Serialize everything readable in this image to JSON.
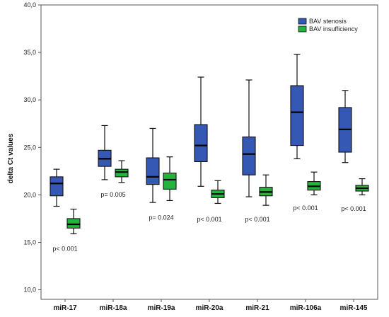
{
  "chart_data": {
    "type": "boxplot",
    "ylabel": "delta Ct values",
    "xlabel": "",
    "ylim": [
      9.0,
      40.0
    ],
    "yticks": [
      "10,0",
      "15,0",
      "20,0",
      "25,0",
      "30,0",
      "35,0",
      "40,0"
    ],
    "ytick_values": [
      10,
      15,
      20,
      25,
      30,
      35,
      40
    ],
    "grid": false,
    "legend_position": "top-right",
    "categories": [
      "miR-17",
      "miR-18a",
      "miR-19a",
      "miR-20a",
      "miR-21",
      "miR-106a",
      "miR-145"
    ],
    "series": [
      {
        "name": "BAV stenosis",
        "color": "#3558b5",
        "boxes": [
          {
            "min": 18.8,
            "q1": 19.9,
            "median": 21.2,
            "q3": 21.9,
            "max": 22.7
          },
          {
            "min": 21.6,
            "q1": 23.0,
            "median": 23.8,
            "q3": 24.7,
            "max": 27.3
          },
          {
            "min": 19.2,
            "q1": 21.1,
            "median": 21.9,
            "q3": 23.9,
            "max": 27.0
          },
          {
            "min": 20.9,
            "q1": 23.5,
            "median": 25.2,
            "q3": 27.4,
            "max": 32.4
          },
          {
            "min": 19.8,
            "q1": 22.1,
            "median": 24.3,
            "q3": 26.1,
            "max": 32.1
          },
          {
            "min": 23.8,
            "q1": 25.2,
            "median": 28.7,
            "q3": 31.5,
            "max": 34.8
          },
          {
            "min": 23.4,
            "q1": 24.5,
            "median": 26.9,
            "q3": 29.2,
            "max": 31.0
          }
        ]
      },
      {
        "name": "BAV insufficiency",
        "color": "#22b43c",
        "boxes": [
          {
            "min": 15.9,
            "q1": 16.5,
            "median": 16.9,
            "q3": 17.5,
            "max": 18.5
          },
          {
            "min": 21.3,
            "q1": 21.9,
            "median": 22.4,
            "q3": 22.7,
            "max": 23.6
          },
          {
            "min": 19.4,
            "q1": 20.6,
            "median": 21.6,
            "q3": 22.3,
            "max": 24.0
          },
          {
            "min": 19.1,
            "q1": 19.7,
            "median": 20.1,
            "q3": 20.5,
            "max": 21.5
          },
          {
            "min": 18.9,
            "q1": 19.9,
            "median": 20.3,
            "q3": 20.8,
            "max": 22.1
          },
          {
            "min": 20.0,
            "q1": 20.5,
            "median": 20.9,
            "q3": 21.4,
            "max": 22.4
          },
          {
            "min": 20.0,
            "q1": 20.4,
            "median": 20.7,
            "q3": 21.0,
            "max": 21.7
          }
        ]
      }
    ],
    "annotations": [
      {
        "category": "miR-17",
        "text": "p< 0.001",
        "y": 14.1
      },
      {
        "category": "miR-18a",
        "text": "p= 0.005",
        "y": 19.8
      },
      {
        "category": "miR-19a",
        "text": "p= 0.024",
        "y": 17.4
      },
      {
        "category": "miR-20a",
        "text": "p< 0.001",
        "y": 17.2
      },
      {
        "category": "miR-21",
        "text": "p< 0.001",
        "y": 17.2
      },
      {
        "category": "miR-106a",
        "text": "p< 0.001",
        "y": 18.4
      },
      {
        "category": "miR-145",
        "text": "p< 0.001",
        "y": 18.3
      }
    ]
  }
}
